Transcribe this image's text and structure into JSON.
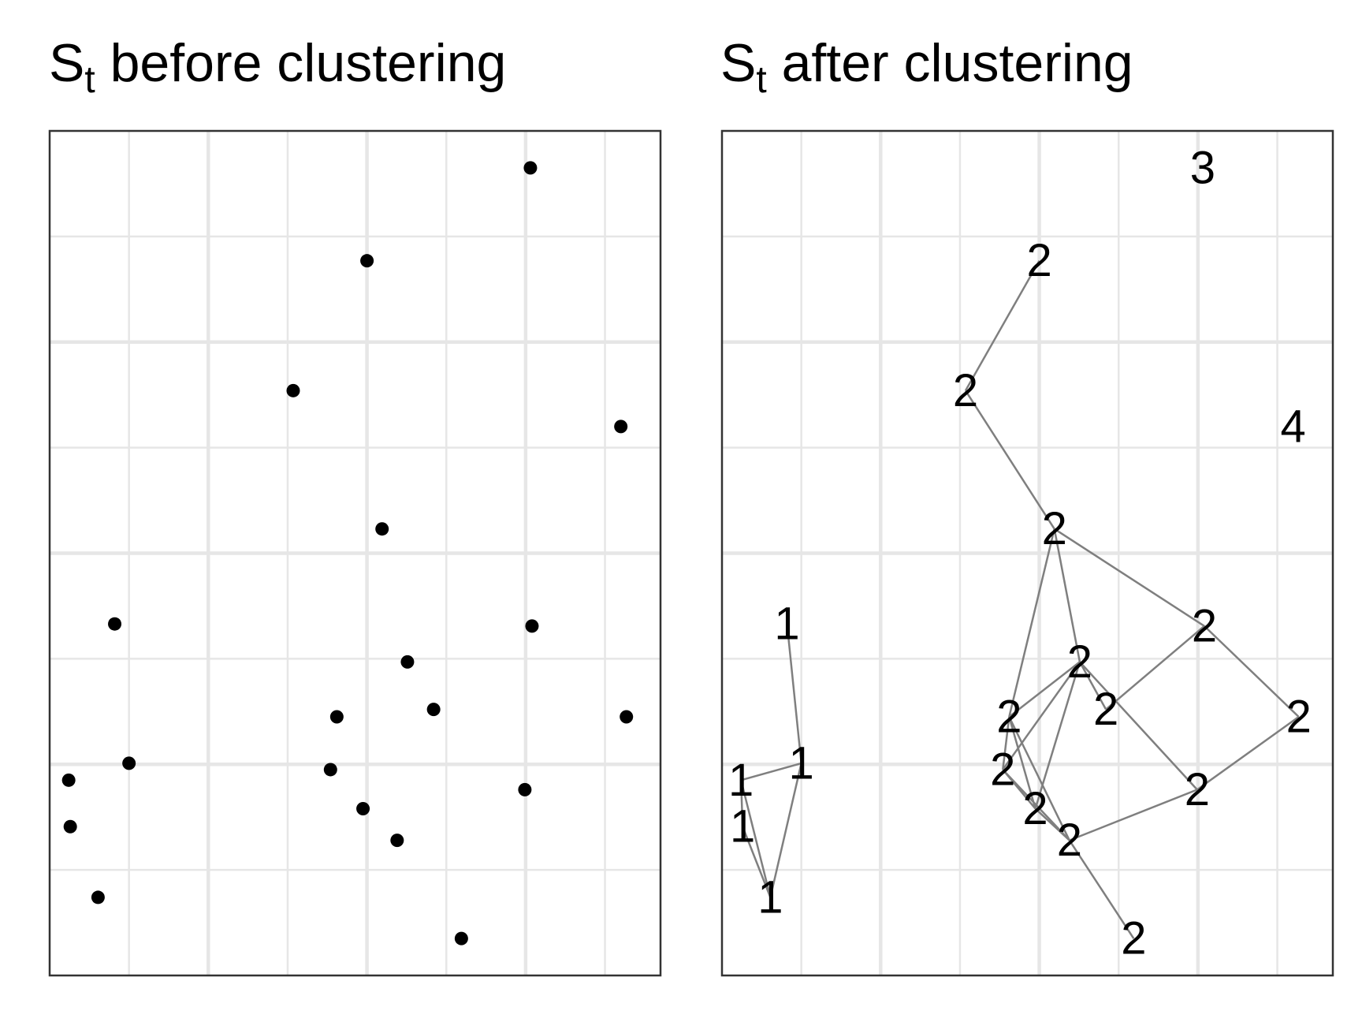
{
  "colors": {
    "background": "#ffffff",
    "grid": "#e6e6e6",
    "border": "#333333",
    "points": "#000000",
    "edges": "#7f7f7f"
  },
  "chart_data": [
    {
      "type": "scatter",
      "title": "S",
      "title_subscript": "t",
      "title_rest": " before clustering",
      "xlabel": "",
      "ylabel": "",
      "xlim": [
        0,
        7.7
      ],
      "ylim": [
        0,
        8.0
      ],
      "x_major_grid": [
        2,
        4,
        6
      ],
      "x_minor_grid": [
        1,
        3,
        5,
        7
      ],
      "y_major_grid": [
        2,
        4,
        6
      ],
      "y_minor_grid": [
        1,
        3,
        5,
        7
      ],
      "points": [
        {
          "x": 6.06,
          "y": 7.65
        },
        {
          "x": 4.0,
          "y": 6.77
        },
        {
          "x": 3.07,
          "y": 5.54
        },
        {
          "x": 7.2,
          "y": 5.2
        },
        {
          "x": 4.19,
          "y": 4.23
        },
        {
          "x": 0.82,
          "y": 3.33
        },
        {
          "x": 6.08,
          "y": 3.31
        },
        {
          "x": 4.51,
          "y": 2.97
        },
        {
          "x": 3.62,
          "y": 2.45
        },
        {
          "x": 4.84,
          "y": 2.52
        },
        {
          "x": 7.27,
          "y": 2.45
        },
        {
          "x": 1.0,
          "y": 2.01
        },
        {
          "x": 0.24,
          "y": 1.85
        },
        {
          "x": 3.54,
          "y": 1.95
        },
        {
          "x": 5.99,
          "y": 1.76
        },
        {
          "x": 3.95,
          "y": 1.58
        },
        {
          "x": 0.26,
          "y": 1.41
        },
        {
          "x": 4.38,
          "y": 1.28
        },
        {
          "x": 0.61,
          "y": 0.74
        },
        {
          "x": 5.19,
          "y": 0.35
        }
      ]
    },
    {
      "type": "scatter",
      "title": "S",
      "title_subscript": "t",
      "title_rest": " after clustering",
      "xlabel": "",
      "ylabel": "",
      "xlim": [
        0,
        7.7
      ],
      "ylim": [
        0,
        8.0
      ],
      "x_major_grid": [
        2,
        4,
        6
      ],
      "x_minor_grid": [
        1,
        3,
        5,
        7
      ],
      "y_major_grid": [
        2,
        4,
        6
      ],
      "y_minor_grid": [
        1,
        3,
        5,
        7
      ],
      "points": [
        {
          "x": 6.06,
          "y": 7.65,
          "label": "3"
        },
        {
          "x": 4.0,
          "y": 6.77,
          "label": "2"
        },
        {
          "x": 3.07,
          "y": 5.54,
          "label": "2"
        },
        {
          "x": 7.2,
          "y": 5.2,
          "label": "4"
        },
        {
          "x": 4.19,
          "y": 4.23,
          "label": "2"
        },
        {
          "x": 0.82,
          "y": 3.33,
          "label": "1"
        },
        {
          "x": 6.08,
          "y": 3.31,
          "label": "2"
        },
        {
          "x": 4.51,
          "y": 2.97,
          "label": "2"
        },
        {
          "x": 3.62,
          "y": 2.45,
          "label": "2"
        },
        {
          "x": 4.84,
          "y": 2.52,
          "label": "2"
        },
        {
          "x": 7.27,
          "y": 2.45,
          "label": "2"
        },
        {
          "x": 1.0,
          "y": 2.01,
          "label": "1"
        },
        {
          "x": 0.24,
          "y": 1.85,
          "label": "1"
        },
        {
          "x": 3.54,
          "y": 1.95,
          "label": "2"
        },
        {
          "x": 5.99,
          "y": 1.76,
          "label": "2"
        },
        {
          "x": 3.95,
          "y": 1.58,
          "label": "2"
        },
        {
          "x": 0.26,
          "y": 1.41,
          "label": "1"
        },
        {
          "x": 4.38,
          "y": 1.28,
          "label": "2"
        },
        {
          "x": 0.61,
          "y": 0.74,
          "label": "1"
        },
        {
          "x": 5.19,
          "y": 0.35,
          "label": "2"
        }
      ],
      "edges": [
        [
          1,
          2
        ],
        [
          2,
          4
        ],
        [
          4,
          7
        ],
        [
          4,
          6
        ],
        [
          4,
          8
        ],
        [
          6,
          9
        ],
        [
          6,
          10
        ],
        [
          10,
          14
        ],
        [
          7,
          8
        ],
        [
          7,
          9
        ],
        [
          7,
          14
        ],
        [
          7,
          13
        ],
        [
          7,
          15
        ],
        [
          8,
          13
        ],
        [
          8,
          15
        ],
        [
          8,
          17
        ],
        [
          13,
          15
        ],
        [
          13,
          17
        ],
        [
          15,
          17
        ],
        [
          17,
          14
        ],
        [
          17,
          19
        ],
        [
          5,
          11
        ],
        [
          11,
          12
        ],
        [
          11,
          18
        ],
        [
          12,
          16
        ],
        [
          12,
          18
        ],
        [
          16,
          18
        ]
      ]
    }
  ]
}
